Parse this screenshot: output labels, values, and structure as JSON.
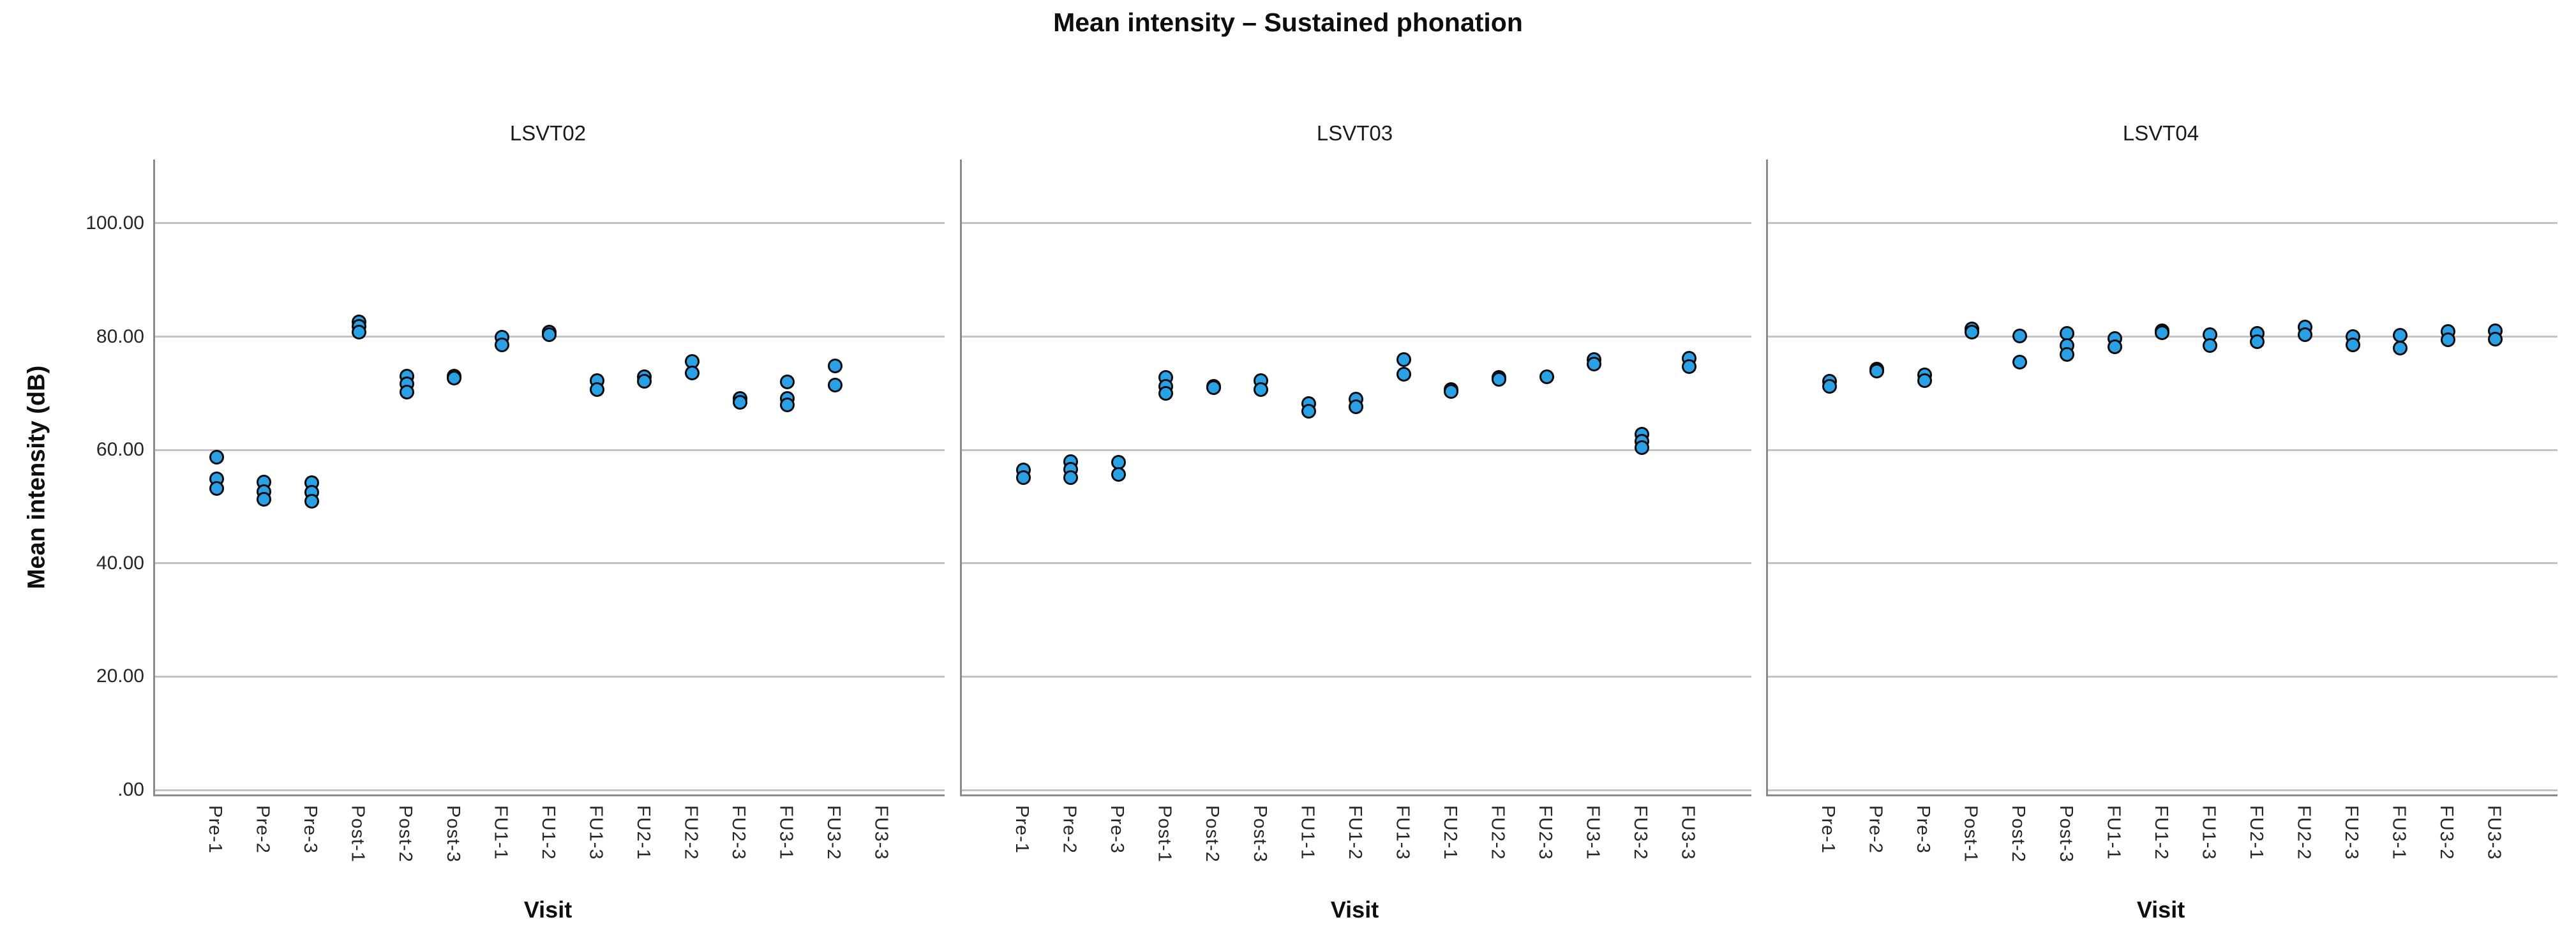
{
  "figure_title": "Mean intensity – Sustained phonation",
  "style": {
    "dot_fill": "#2AA0E6",
    "dot_stroke": "#0a0a0a",
    "grid_color": "#c4c4c4",
    "axis_color": "#8a8a8a",
    "background": "#ffffff"
  },
  "chart_data": {
    "type": "scatter",
    "title": "Mean intensity – Sustained phonation",
    "xlabel": "Visit",
    "ylabel": "Mean intensity (dB)",
    "ylim": [
      0,
      111.5
    ],
    "grid": "horizontal",
    "legend": "none",
    "y_ticks": [
      {
        "label": "100.00",
        "value": 100
      },
      {
        "label": "80.00",
        "value": 80
      },
      {
        "label": "60.00",
        "value": 60
      },
      {
        "label": "40.00",
        "value": 40
      },
      {
        "label": "20.00",
        "value": 20
      },
      {
        "label": ".00",
        "value": 0
      }
    ],
    "categories": [
      "Pre-1",
      "Pre-2",
      "Pre-3",
      "Post-1",
      "Post-2",
      "Post-3",
      "FU1-1",
      "FU1-2",
      "FU1-3",
      "FU2-1",
      "FU2-2",
      "FU2-3",
      "FU3-1",
      "FU3-2",
      "FU3-3"
    ],
    "unit": "dB",
    "panels": [
      {
        "label": "LSVT02",
        "points": {
          "Pre-1": [
            58.7,
            54.9,
            53.2
          ],
          "Pre-2": [
            54.3,
            52.6,
            51.2
          ],
          "Pre-3": [
            54.2,
            52.5,
            50.9
          ],
          "Post-1": [
            82.5,
            81.8,
            80.7
          ],
          "Post-2": [
            73.0,
            71.6,
            70.2
          ],
          "Post-3": [
            73.0,
            72.6
          ],
          "FU1-1": [
            79.8,
            78.5
          ],
          "FU1-2": [
            80.7,
            80.3
          ],
          "FU1-3": [
            72.2,
            70.6
          ],
          "FU2-1": [
            72.9,
            72.1
          ],
          "FU2-2": [
            75.6,
            73.5
          ],
          "FU2-3": [
            69.0,
            68.4
          ],
          "FU3-1": [
            72.0,
            69.0,
            67.9
          ],
          "FU3-2": [
            74.8,
            71.4
          ],
          "FU3-3": []
        }
      },
      {
        "label": "LSVT03",
        "points": {
          "Pre-1": [
            56.4,
            55.1
          ],
          "Pre-2": [
            57.9,
            56.5,
            55.1
          ],
          "Pre-3": [
            57.8,
            55.6
          ],
          "Post-1": [
            72.7,
            71.2,
            69.9
          ],
          "Post-2": [
            71.2,
            70.9
          ],
          "Post-3": [
            72.2,
            70.6
          ],
          "FU1-1": [
            68.1,
            66.8
          ],
          "FU1-2": [
            68.9,
            67.6
          ],
          "FU1-3": [
            75.9,
            73.3
          ],
          "FU2-1": [
            70.6,
            70.3
          ],
          "FU2-2": [
            72.7,
            72.4
          ],
          "FU2-3": [
            72.9
          ],
          "FU3-1": [
            75.9,
            75.1
          ],
          "FU3-2": [
            62.7,
            61.5,
            60.4
          ],
          "FU3-3": [
            76.1,
            74.7
          ]
        }
      },
      {
        "label": "LSVT04",
        "points": {
          "Pre-1": [
            72.1,
            71.2
          ],
          "Pre-2": [
            74.2,
            73.9
          ],
          "Pre-3": [
            73.2,
            72.2
          ],
          "Post-1": [
            81.3,
            80.8
          ],
          "Post-2": [
            80.1,
            75.5
          ],
          "Post-3": [
            80.5,
            78.4,
            76.8
          ],
          "FU1-1": [
            79.6,
            78.2
          ],
          "FU1-2": [
            81.0,
            80.6
          ],
          "FU1-3": [
            80.3,
            78.4
          ],
          "FU2-1": [
            80.5,
            79.0
          ],
          "FU2-2": [
            81.6,
            80.3
          ],
          "FU2-3": [
            79.9,
            78.5
          ],
          "FU3-1": [
            80.2,
            77.9
          ],
          "FU3-2": [
            80.9,
            79.4
          ],
          "FU3-3": [
            81.0,
            79.5
          ]
        }
      }
    ]
  }
}
